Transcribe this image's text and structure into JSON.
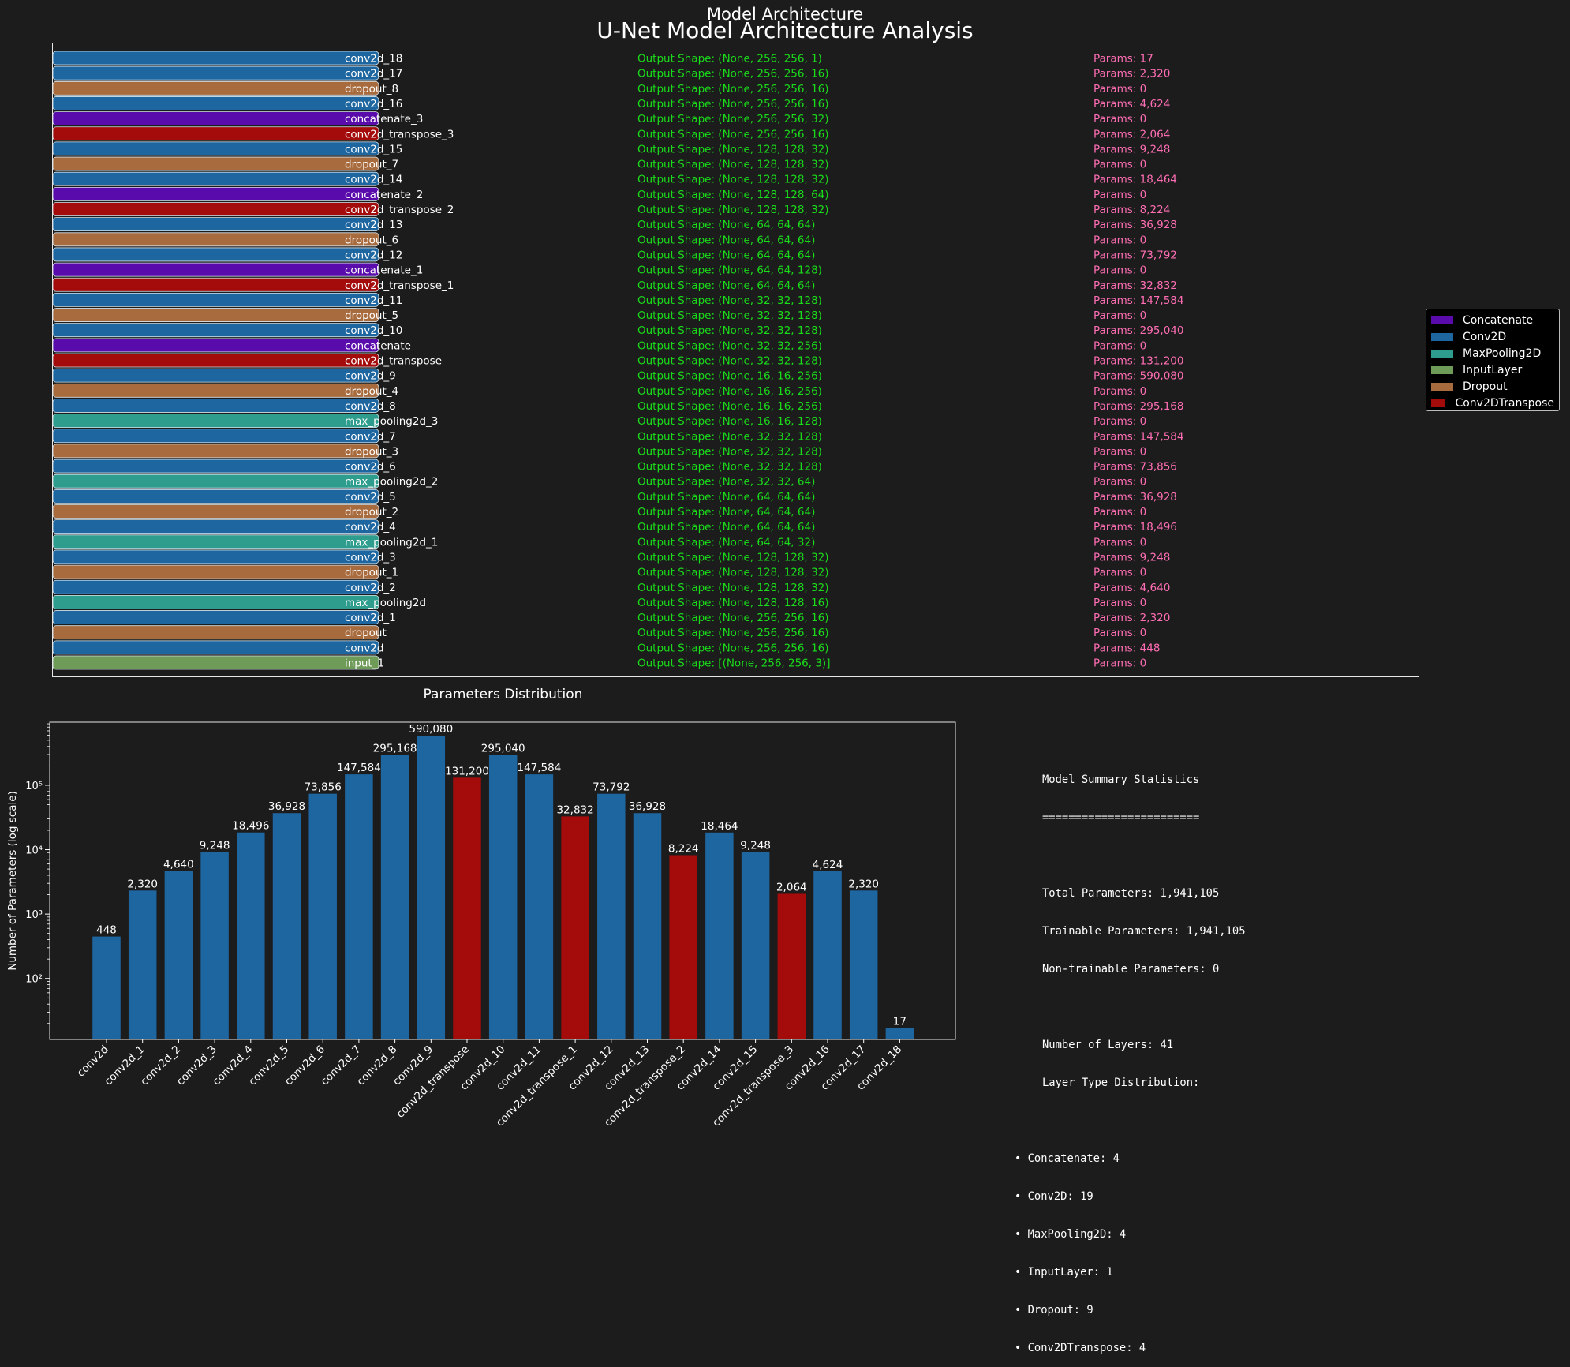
{
  "title": "Model Architecture",
  "suptitle": "U-Net Model Architecture Analysis",
  "colors": {
    "Concatenate": "#5a0bab",
    "Conv2D": "#1e66a0",
    "MaxPooling2D": "#2f9d8d",
    "InputLayer": "#6f9b58",
    "Dropout": "#a86b3e",
    "Conv2DTranspose": "#a40b0b",
    "shape_text": "#1adc1a",
    "params_text": "#ff6eb4"
  },
  "legend": [
    "Concatenate",
    "Conv2D",
    "MaxPooling2D",
    "InputLayer",
    "Dropout",
    "Conv2DTranspose"
  ],
  "layers": [
    {
      "name": "conv2d_18",
      "type": "Conv2D",
      "shape": "Output Shape: (None, 256, 256, 1)",
      "params": "Params: 17"
    },
    {
      "name": "conv2d_17",
      "type": "Conv2D",
      "shape": "Output Shape: (None, 256, 256, 16)",
      "params": "Params: 2,320"
    },
    {
      "name": "dropout_8",
      "type": "Dropout",
      "shape": "Output Shape: (None, 256, 256, 16)",
      "params": "Params: 0"
    },
    {
      "name": "conv2d_16",
      "type": "Conv2D",
      "shape": "Output Shape: (None, 256, 256, 16)",
      "params": "Params: 4,624"
    },
    {
      "name": "concatenate_3",
      "type": "Concatenate",
      "shape": "Output Shape: (None, 256, 256, 32)",
      "params": "Params: 0"
    },
    {
      "name": "conv2d_transpose_3",
      "type": "Conv2DTranspose",
      "shape": "Output Shape: (None, 256, 256, 16)",
      "params": "Params: 2,064"
    },
    {
      "name": "conv2d_15",
      "type": "Conv2D",
      "shape": "Output Shape: (None, 128, 128, 32)",
      "params": "Params: 9,248"
    },
    {
      "name": "dropout_7",
      "type": "Dropout",
      "shape": "Output Shape: (None, 128, 128, 32)",
      "params": "Params: 0"
    },
    {
      "name": "conv2d_14",
      "type": "Conv2D",
      "shape": "Output Shape: (None, 128, 128, 32)",
      "params": "Params: 18,464"
    },
    {
      "name": "concatenate_2",
      "type": "Concatenate",
      "shape": "Output Shape: (None, 128, 128, 64)",
      "params": "Params: 0"
    },
    {
      "name": "conv2d_transpose_2",
      "type": "Conv2DTranspose",
      "shape": "Output Shape: (None, 128, 128, 32)",
      "params": "Params: 8,224"
    },
    {
      "name": "conv2d_13",
      "type": "Conv2D",
      "shape": "Output Shape: (None, 64, 64, 64)",
      "params": "Params: 36,928"
    },
    {
      "name": "dropout_6",
      "type": "Dropout",
      "shape": "Output Shape: (None, 64, 64, 64)",
      "params": "Params: 0"
    },
    {
      "name": "conv2d_12",
      "type": "Conv2D",
      "shape": "Output Shape: (None, 64, 64, 64)",
      "params": "Params: 73,792"
    },
    {
      "name": "concatenate_1",
      "type": "Concatenate",
      "shape": "Output Shape: (None, 64, 64, 128)",
      "params": "Params: 0"
    },
    {
      "name": "conv2d_transpose_1",
      "type": "Conv2DTranspose",
      "shape": "Output Shape: (None, 64, 64, 64)",
      "params": "Params: 32,832"
    },
    {
      "name": "conv2d_11",
      "type": "Conv2D",
      "shape": "Output Shape: (None, 32, 32, 128)",
      "params": "Params: 147,584"
    },
    {
      "name": "dropout_5",
      "type": "Dropout",
      "shape": "Output Shape: (None, 32, 32, 128)",
      "params": "Params: 0"
    },
    {
      "name": "conv2d_10",
      "type": "Conv2D",
      "shape": "Output Shape: (None, 32, 32, 128)",
      "params": "Params: 295,040"
    },
    {
      "name": "concatenate",
      "type": "Concatenate",
      "shape": "Output Shape: (None, 32, 32, 256)",
      "params": "Params: 0"
    },
    {
      "name": "conv2d_transpose",
      "type": "Conv2DTranspose",
      "shape": "Output Shape: (None, 32, 32, 128)",
      "params": "Params: 131,200"
    },
    {
      "name": "conv2d_9",
      "type": "Conv2D",
      "shape": "Output Shape: (None, 16, 16, 256)",
      "params": "Params: 590,080"
    },
    {
      "name": "dropout_4",
      "type": "Dropout",
      "shape": "Output Shape: (None, 16, 16, 256)",
      "params": "Params: 0"
    },
    {
      "name": "conv2d_8",
      "type": "Conv2D",
      "shape": "Output Shape: (None, 16, 16, 256)",
      "params": "Params: 295,168"
    },
    {
      "name": "max_pooling2d_3",
      "type": "MaxPooling2D",
      "shape": "Output Shape: (None, 16, 16, 128)",
      "params": "Params: 0"
    },
    {
      "name": "conv2d_7",
      "type": "Conv2D",
      "shape": "Output Shape: (None, 32, 32, 128)",
      "params": "Params: 147,584"
    },
    {
      "name": "dropout_3",
      "type": "Dropout",
      "shape": "Output Shape: (None, 32, 32, 128)",
      "params": "Params: 0"
    },
    {
      "name": "conv2d_6",
      "type": "Conv2D",
      "shape": "Output Shape: (None, 32, 32, 128)",
      "params": "Params: 73,856"
    },
    {
      "name": "max_pooling2d_2",
      "type": "MaxPooling2D",
      "shape": "Output Shape: (None, 32, 32, 64)",
      "params": "Params: 0"
    },
    {
      "name": "conv2d_5",
      "type": "Conv2D",
      "shape": "Output Shape: (None, 64, 64, 64)",
      "params": "Params: 36,928"
    },
    {
      "name": "dropout_2",
      "type": "Dropout",
      "shape": "Output Shape: (None, 64, 64, 64)",
      "params": "Params: 0"
    },
    {
      "name": "conv2d_4",
      "type": "Conv2D",
      "shape": "Output Shape: (None, 64, 64, 64)",
      "params": "Params: 18,496"
    },
    {
      "name": "max_pooling2d_1",
      "type": "MaxPooling2D",
      "shape": "Output Shape: (None, 64, 64, 32)",
      "params": "Params: 0"
    },
    {
      "name": "conv2d_3",
      "type": "Conv2D",
      "shape": "Output Shape: (None, 128, 128, 32)",
      "params": "Params: 9,248"
    },
    {
      "name": "dropout_1",
      "type": "Dropout",
      "shape": "Output Shape: (None, 128, 128, 32)",
      "params": "Params: 0"
    },
    {
      "name": "conv2d_2",
      "type": "Conv2D",
      "shape": "Output Shape: (None, 128, 128, 32)",
      "params": "Params: 4,640"
    },
    {
      "name": "max_pooling2d",
      "type": "MaxPooling2D",
      "shape": "Output Shape: (None, 128, 128, 16)",
      "params": "Params: 0"
    },
    {
      "name": "conv2d_1",
      "type": "Conv2D",
      "shape": "Output Shape: (None, 256, 256, 16)",
      "params": "Params: 2,320"
    },
    {
      "name": "dropout",
      "type": "Dropout",
      "shape": "Output Shape: (None, 256, 256, 16)",
      "params": "Params: 0"
    },
    {
      "name": "conv2d",
      "type": "Conv2D",
      "shape": "Output Shape: (None, 256, 256, 16)",
      "params": "Params: 448"
    },
    {
      "name": "input_1",
      "type": "InputLayer",
      "shape": "Output Shape: [(None, 256, 256, 3)]",
      "params": "Params: 0"
    }
  ],
  "chart_data": {
    "type": "bar",
    "title": "Parameters Distribution",
    "ylabel": "Number of Parameters (log scale)",
    "yscale": "log",
    "ylim": [
      10,
      1000000
    ],
    "ytick_labels": [
      "10²",
      "10³",
      "10⁴",
      "10⁵"
    ],
    "categories": [
      "conv2d",
      "conv2d_1",
      "conv2d_2",
      "conv2d_3",
      "conv2d_4",
      "conv2d_5",
      "conv2d_6",
      "conv2d_7",
      "conv2d_8",
      "conv2d_9",
      "conv2d_transpose",
      "conv2d_10",
      "conv2d_11",
      "conv2d_transpose_1",
      "conv2d_12",
      "conv2d_13",
      "conv2d_transpose_2",
      "conv2d_14",
      "conv2d_15",
      "conv2d_transpose_3",
      "conv2d_16",
      "conv2d_17",
      "conv2d_18"
    ],
    "values": [
      448,
      2320,
      4640,
      9248,
      18496,
      36928,
      73856,
      147584,
      295168,
      590080,
      131200,
      295040,
      147584,
      32832,
      73792,
      36928,
      8224,
      18464,
      9248,
      2064,
      4624,
      2320,
      17
    ],
    "value_labels": [
      "448",
      "2,320",
      "4,640",
      "9,248",
      "18,496",
      "36,928",
      "73,856",
      "147,584",
      "295,168",
      "590,080",
      "131,200",
      "295,040",
      "147,584",
      "32,832",
      "73,792",
      "36,928",
      "8,224",
      "18,464",
      "9,248",
      "2,064",
      "4,624",
      "2,320",
      "17"
    ],
    "bar_types": [
      "Conv2D",
      "Conv2D",
      "Conv2D",
      "Conv2D",
      "Conv2D",
      "Conv2D",
      "Conv2D",
      "Conv2D",
      "Conv2D",
      "Conv2D",
      "Conv2DTranspose",
      "Conv2D",
      "Conv2D",
      "Conv2DTranspose",
      "Conv2D",
      "Conv2D",
      "Conv2DTranspose",
      "Conv2D",
      "Conv2D",
      "Conv2DTranspose",
      "Conv2D",
      "Conv2D",
      "Conv2D"
    ]
  },
  "summary": {
    "heading": "Model Summary Statistics",
    "rule": "========================",
    "total": "Total Parameters: 1,941,105",
    "trainable": "Trainable Parameters: 1,941,105",
    "non_trainable": "Non-trainable Parameters: 0",
    "num_layers": "Number of Layers: 41",
    "dist_heading": "Layer Type Distribution:",
    "dist": [
      "• Concatenate: 4",
      "• Conv2D: 19",
      "• MaxPooling2D: 4",
      "• InputLayer: 1",
      "• Dropout: 9",
      "• Conv2DTranspose: 4"
    ]
  }
}
